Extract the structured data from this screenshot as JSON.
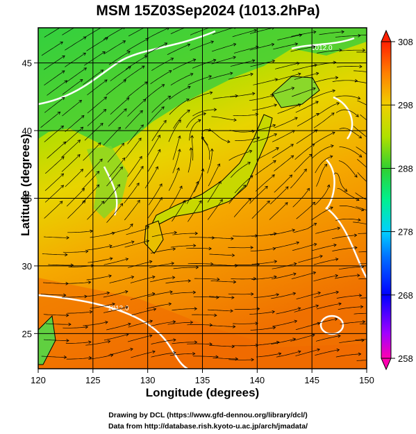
{
  "title": "MSM 15Z03Sep2024 (1013.2hPa)",
  "chart_data": {
    "type": "heatmap",
    "title": "MSM 15Z03Sep2024 (1013.2hPa)",
    "xlabel": "Longitude (degrees)",
    "ylabel": "Latitude  (degrees)",
    "xlim": [
      120,
      150
    ],
    "ylim": [
      22.4,
      47.6
    ],
    "x_ticks": [
      "120",
      "125",
      "130",
      "135",
      "140",
      "145",
      "150"
    ],
    "y_ticks": [
      "25",
      "30",
      "35",
      "40",
      "45"
    ],
    "grid": true,
    "colorbar": {
      "ticks": [
        "308",
        "298",
        "288",
        "278",
        "268",
        "258"
      ],
      "range": [
        258,
        308
      ],
      "colors": [
        "#ff0090",
        "#8000ff",
        "#0000ff",
        "#0080ff",
        "#00d0ff",
        "#00ff90",
        "#20d020",
        "#80e020",
        "#d8e800",
        "#ffb000",
        "#ff6000",
        "#ff2000"
      ]
    },
    "contour_labels": [
      "1012.0",
      "1012.0"
    ],
    "field_note_values": {
      "north": 290,
      "central": 297,
      "south": 302
    }
  },
  "credits": {
    "line1": "Drawing by DCL (https://www.gfd-dennou.org/library/dcl/)",
    "line2": "Data from http://database.rish.kyoto-u.ac.jp/arch/jmadata/"
  }
}
